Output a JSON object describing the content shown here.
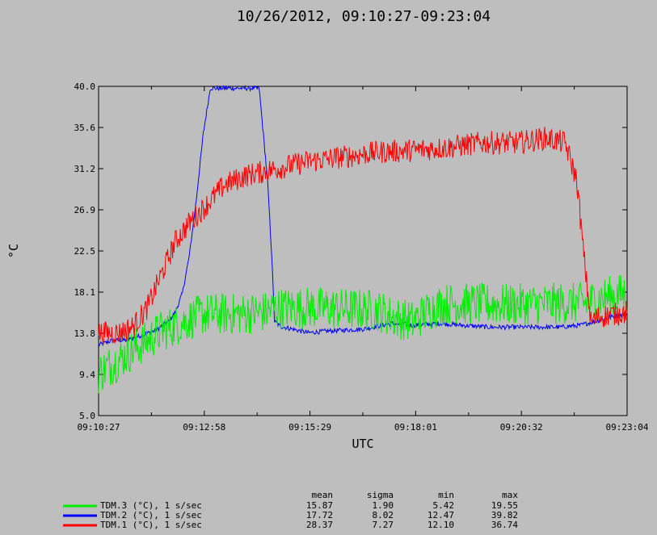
{
  "chart_data": {
    "type": "line",
    "title": "10/26/2012, 09:10:27-09:23:04",
    "xlabel": "UTC",
    "ylabel": "°C",
    "x_ticks": [
      "09:10:27",
      "09:12:58",
      "09:15:29",
      "09:18:01",
      "09:20:32",
      "09:23:04"
    ],
    "y_ticks": [
      "40.0",
      "35.6",
      "31.2",
      "26.9",
      "22.5",
      "18.1",
      "13.8",
      "9.4",
      "5.0"
    ],
    "ylim": [
      5.0,
      40.0
    ],
    "xlim_seconds": [
      0,
      757
    ],
    "grid": false,
    "legend_position": "bottom-left",
    "stats_headers": [
      "mean",
      "sigma",
      "min",
      "max"
    ],
    "series": [
      {
        "name": "TDM.3 (°C), 1 s/sec",
        "color": "#00ee00",
        "stats": [
          "15.87",
          "1.90",
          "5.42",
          "19.55"
        ],
        "noise": 4.5,
        "points": [
          [
            0,
            9.5
          ],
          [
            40,
            11.5
          ],
          [
            90,
            14.0
          ],
          [
            150,
            15.8
          ],
          [
            200,
            15.8
          ],
          [
            240,
            16.0
          ],
          [
            250,
            16.4
          ],
          [
            300,
            16.5
          ],
          [
            400,
            16.2
          ],
          [
            420,
            15.5
          ],
          [
            450,
            15.0
          ],
          [
            480,
            16.5
          ],
          [
            500,
            16.9
          ],
          [
            600,
            16.8
          ],
          [
            700,
            17.0
          ],
          [
            720,
            17.5
          ],
          [
            757,
            18.0
          ]
        ]
      },
      {
        "name": "TDM.2 (°C), 1 s/sec",
        "color": "#0000ff",
        "stats": [
          "17.72",
          "8.02",
          "12.47",
          "39.82"
        ],
        "noise": 0.5,
        "points": [
          [
            0,
            12.5
          ],
          [
            20,
            13.0
          ],
          [
            40,
            13.0
          ],
          [
            60,
            13.5
          ],
          [
            80,
            14.0
          ],
          [
            100,
            15.0
          ],
          [
            110,
            16.0
          ],
          [
            120,
            18.0
          ],
          [
            130,
            22.0
          ],
          [
            140,
            28.0
          ],
          [
            150,
            35.0
          ],
          [
            160,
            39.8
          ],
          [
            230,
            39.8
          ],
          [
            242,
            30.0
          ],
          [
            248,
            22.0
          ],
          [
            252,
            15.0
          ],
          [
            260,
            14.5
          ],
          [
            300,
            13.8
          ],
          [
            330,
            14.0
          ],
          [
            380,
            14.2
          ],
          [
            420,
            14.8
          ],
          [
            450,
            14.6
          ],
          [
            490,
            14.8
          ],
          [
            520,
            14.6
          ],
          [
            560,
            14.4
          ],
          [
            600,
            14.4
          ],
          [
            660,
            14.4
          ],
          [
            690,
            14.6
          ],
          [
            720,
            15.2
          ],
          [
            740,
            15.6
          ],
          [
            757,
            15.8
          ]
        ]
      },
      {
        "name": "TDM.1 (°C), 1 s/sec",
        "color": "#ff0000",
        "stats": [
          "28.37",
          "7.27",
          "12.10",
          "36.74"
        ],
        "noise": 2.5,
        "points": [
          [
            0,
            13.8
          ],
          [
            30,
            13.8
          ],
          [
            50,
            14.5
          ],
          [
            70,
            16.5
          ],
          [
            90,
            20.0
          ],
          [
            110,
            23.5
          ],
          [
            130,
            25.5
          ],
          [
            150,
            27.0
          ],
          [
            180,
            29.5
          ],
          [
            210,
            30.5
          ],
          [
            240,
            31.0
          ],
          [
            270,
            31.5
          ],
          [
            300,
            32.0
          ],
          [
            350,
            32.5
          ],
          [
            400,
            33.0
          ],
          [
            450,
            33.2
          ],
          [
            500,
            33.5
          ],
          [
            550,
            34.0
          ],
          [
            600,
            34.0
          ],
          [
            640,
            34.5
          ],
          [
            668,
            34.0
          ],
          [
            685,
            30.0
          ],
          [
            695,
            22.0
          ],
          [
            705,
            15.0
          ],
          [
            715,
            15.5
          ],
          [
            757,
            16.0
          ]
        ]
      }
    ]
  }
}
